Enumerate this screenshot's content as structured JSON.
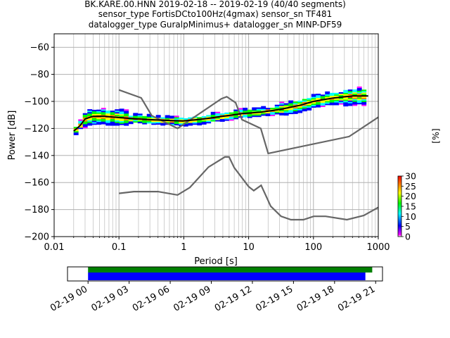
{
  "chart_data": {
    "type": "heatmap",
    "title_lines": [
      "BK.KARE.00.HNN   2019-02-18 -- 2019-02-19  (40/40 segments)",
      "sensor_type FortisDCto100Hz(4gmax) sensor_sn TF481",
      "datalogger_type GuralpMinimus+ datalogger_sn MINP-DF59"
    ],
    "xlabel": "Period [s]",
    "ylabel": "Power [dB]",
    "x_scale": "log",
    "xlim": [
      0.01,
      1000
    ],
    "ylim": [
      -200,
      -50
    ],
    "x_ticks": [
      {
        "value": 0.01,
        "label": "0.01"
      },
      {
        "value": 0.1,
        "label": "0.1"
      },
      {
        "value": 1,
        "label": "1"
      },
      {
        "value": 10,
        "label": "10"
      },
      {
        "value": 100,
        "label": "100"
      },
      {
        "value": 1000,
        "label": "1000"
      }
    ],
    "y_ticks": [
      {
        "value": -60,
        "label": "−60"
      },
      {
        "value": -80,
        "label": "−80"
      },
      {
        "value": -100,
        "label": "−100"
      },
      {
        "value": -120,
        "label": "−120"
      },
      {
        "value": -140,
        "label": "−140"
      },
      {
        "value": -160,
        "label": "−160"
      },
      {
        "value": -180,
        "label": "−180"
      },
      {
        "value": -200,
        "label": "−200"
      }
    ],
    "grid": true,
    "colorbar": {
      "label": "[%]",
      "range": [
        0,
        30
      ],
      "ticks": [
        {
          "value": 0,
          "label": "0"
        },
        {
          "value": 5,
          "label": "5"
        },
        {
          "value": 10,
          "label": "10"
        },
        {
          "value": 15,
          "label": "15"
        },
        {
          "value": 20,
          "label": "20"
        },
        {
          "value": 25,
          "label": "25"
        },
        {
          "value": 30,
          "label": "30"
        }
      ],
      "colormap": "pqlx",
      "colors": [
        "#ffffff",
        "#ff00ff",
        "#0000ff",
        "#00ffff",
        "#00ff00",
        "#ffff00",
        "#ff8000",
        "#ff0000"
      ]
    },
    "mean_curve": {
      "color": "#000000",
      "points": [
        [
          0.02,
          -122
        ],
        [
          0.025,
          -118
        ],
        [
          0.03,
          -113
        ],
        [
          0.04,
          -111
        ],
        [
          0.06,
          -111
        ],
        [
          0.1,
          -112
        ],
        [
          0.2,
          -113
        ],
        [
          0.5,
          -114
        ],
        [
          1,
          -114.5
        ],
        [
          2,
          -113
        ],
        [
          4,
          -111
        ],
        [
          8,
          -109
        ],
        [
          15,
          -108
        ],
        [
          30,
          -106
        ],
        [
          60,
          -103
        ],
        [
          100,
          -100
        ],
        [
          200,
          -97.5
        ],
        [
          400,
          -96
        ],
        [
          700,
          -96
        ]
      ]
    },
    "noise_models": [
      {
        "name": "high",
        "color": "#666666",
        "points": [
          [
            0.1,
            -91.5
          ],
          [
            0.22,
            -97.4
          ],
          [
            0.32,
            -110.5
          ],
          [
            0.8,
            -120
          ],
          [
            3.8,
            -98
          ],
          [
            4.6,
            -96.5
          ],
          [
            6.3,
            -101
          ],
          [
            7.9,
            -113.5
          ],
          [
            15.4,
            -120
          ],
          [
            20,
            -138.5
          ],
          [
            354.8,
            -126
          ],
          [
            10000,
            -80
          ]
        ]
      },
      {
        "name": "low",
        "color": "#666666",
        "points": [
          [
            0.1,
            -168
          ],
          [
            0.17,
            -166.7
          ],
          [
            0.4,
            -166.7
          ],
          [
            0.8,
            -169.2
          ],
          [
            1.24,
            -163.7
          ],
          [
            2.4,
            -148.6
          ],
          [
            4.3,
            -141.1
          ],
          [
            5,
            -141.1
          ],
          [
            6,
            -149
          ],
          [
            10,
            -163
          ],
          [
            12,
            -166
          ],
          [
            15.6,
            -162.1
          ],
          [
            21.9,
            -177.5
          ],
          [
            31.6,
            -185
          ],
          [
            45,
            -187.5
          ],
          [
            70,
            -187.5
          ],
          [
            101,
            -185
          ],
          [
            154,
            -185
          ],
          [
            328,
            -187.5
          ],
          [
            600,
            -184.4
          ],
          [
            10000,
            -151.5
          ]
        ]
      }
    ]
  },
  "time_coverage": {
    "tick_labels": [
      "02-19 00",
      "02-19 03",
      "02-19 06",
      "02-19 09",
      "02-19 12",
      "02-19 15",
      "02-19 18",
      "02-19 21"
    ],
    "tick_hours": [
      0,
      3,
      6,
      9,
      12,
      15,
      18,
      21
    ],
    "xlim_hours": [
      -1.5,
      21.5
    ],
    "data_bar": {
      "start_hour": 0,
      "end_hour": 20.75,
      "color": "#008000"
    },
    "ppsd_bar": {
      "start_hour": 0,
      "end_hour": 20.25,
      "color": "#0000ff"
    }
  }
}
